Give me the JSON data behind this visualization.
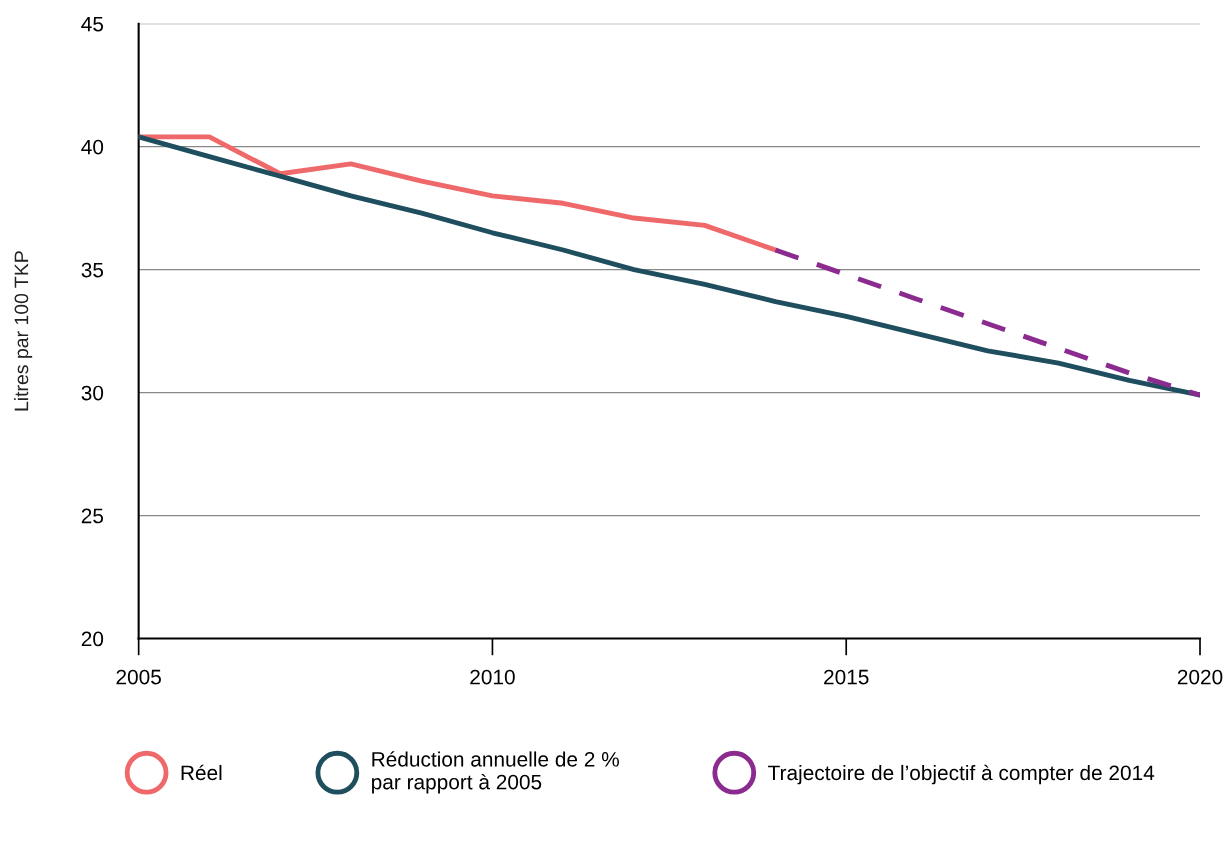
{
  "chart_data": {
    "type": "line",
    "ylabel": "Litres par 100 TKP",
    "xlim": [
      2005,
      2020
    ],
    "xticks": [
      2005,
      2010,
      2015,
      2020
    ],
    "ylim": [
      20,
      45
    ],
    "yticks": [
      20,
      25,
      30,
      35,
      40,
      45
    ],
    "grid": "y",
    "legend": "bottom",
    "marker": "none",
    "series": [
      {
        "name": "Réel",
        "color": "#f0696a",
        "line_style": "solid",
        "x": [
          2005,
          2006,
          2007,
          2008,
          2009,
          2010,
          2011,
          2012,
          2013,
          2014
        ],
        "values": [
          40.4,
          40.4,
          38.9,
          39.3,
          38.6,
          38.0,
          37.7,
          37.1,
          36.8,
          35.8
        ]
      },
      {
        "name": "Réduction annuelle de 2 %\npar rapport à 2005",
        "color": "#1f4e5f",
        "line_style": "solid",
        "x": [
          2005,
          2006,
          2007,
          2008,
          2009,
          2010,
          2011,
          2012,
          2013,
          2014,
          2015,
          2016,
          2017,
          2018,
          2019,
          2020
        ],
        "values": [
          40.4,
          39.6,
          38.8,
          38.0,
          37.3,
          36.5,
          35.8,
          35.0,
          34.4,
          33.7,
          33.1,
          32.4,
          31.7,
          31.2,
          30.5,
          29.9
        ]
      },
      {
        "name": "Trajectoire de l’objectif à compter de 2014",
        "color": "#8b2a8f",
        "line_style": "dashed",
        "x": [
          2014,
          2015,
          2016,
          2017,
          2018,
          2019,
          2020
        ],
        "values": [
          35.8,
          34.8,
          33.8,
          32.8,
          31.8,
          30.8,
          29.9
        ]
      }
    ]
  }
}
